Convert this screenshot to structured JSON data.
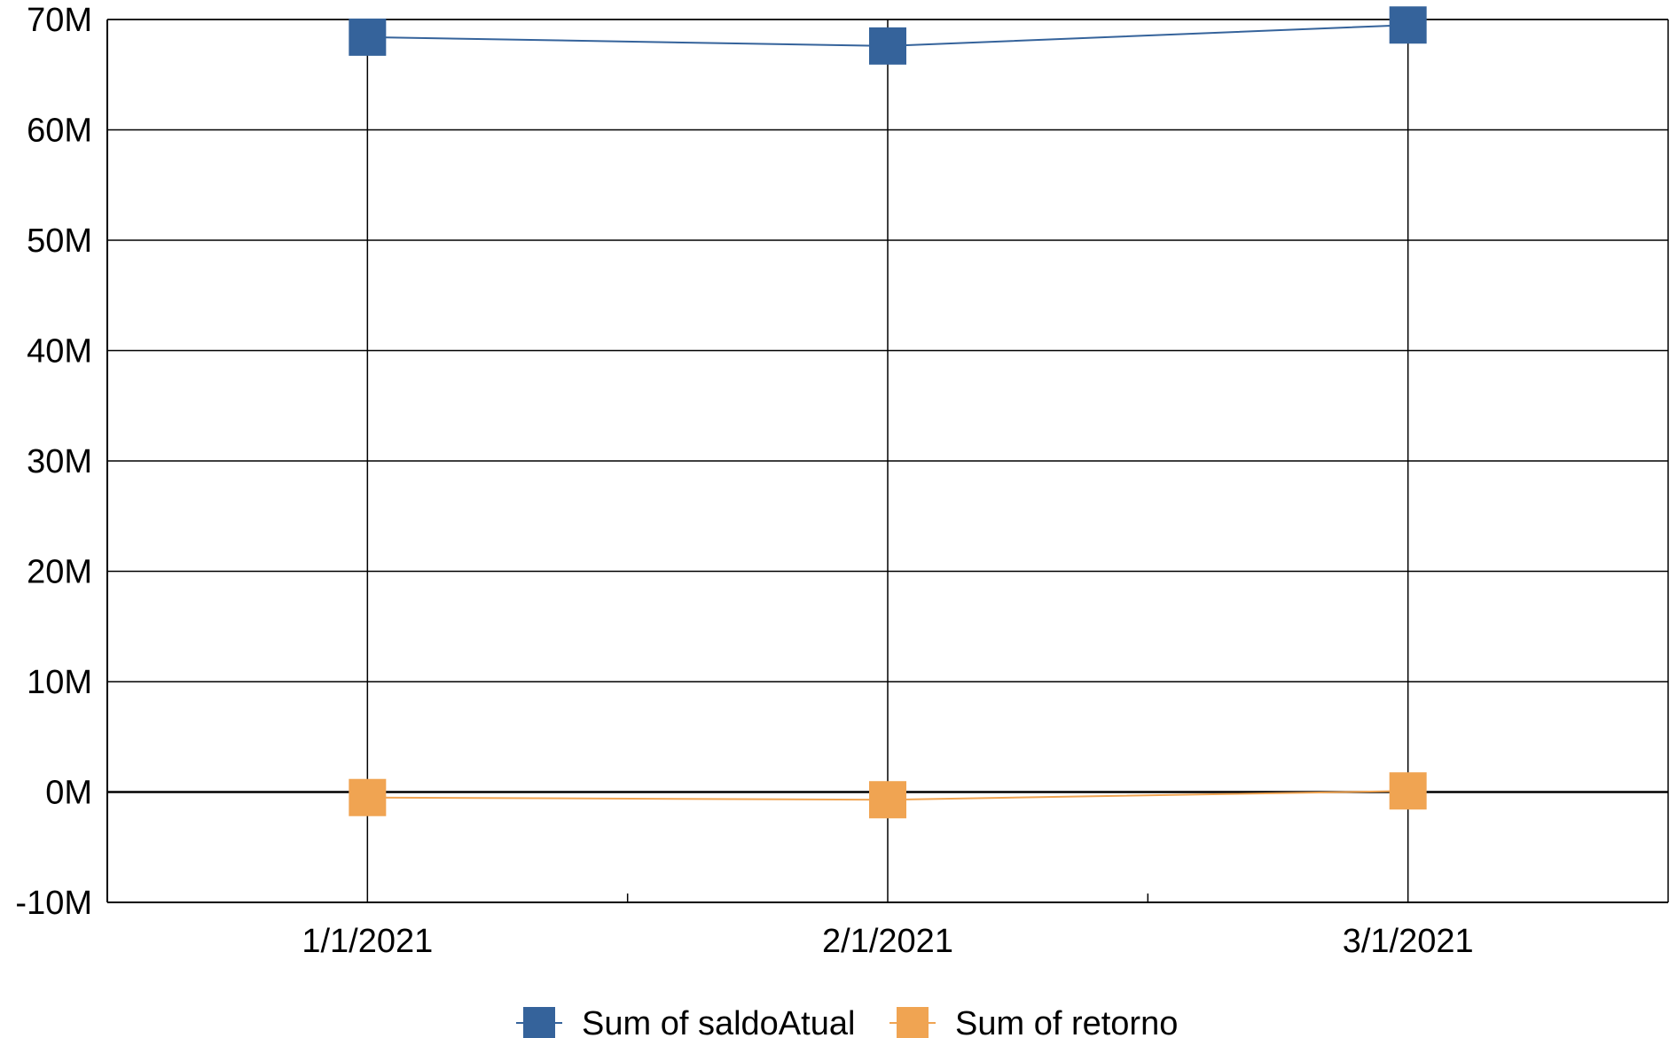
{
  "chart_data": {
    "type": "line",
    "title": "",
    "xlabel": "",
    "ylabel": "",
    "categories": [
      "1/1/2021",
      "2/1/2021",
      "3/1/2021"
    ],
    "y_ticks": [
      "70M",
      "60M",
      "50M",
      "40M",
      "30M",
      "20M",
      "10M",
      "0M",
      "-10M"
    ],
    "y_tick_values": [
      70000000,
      60000000,
      50000000,
      40000000,
      30000000,
      20000000,
      10000000,
      0,
      -10000000
    ],
    "ylim": [
      -10000000,
      70000000
    ],
    "grid": true,
    "legend_position": "bottom",
    "series": [
      {
        "name": "Sum of saldoAtual",
        "color": "#35639b",
        "marker": "square",
        "values": [
          68400000,
          67600000,
          69500000
        ]
      },
      {
        "name": "Sum of retorno",
        "color": "#f0a452",
        "marker": "square",
        "values": [
          -500000,
          -700000,
          100000
        ]
      }
    ]
  }
}
